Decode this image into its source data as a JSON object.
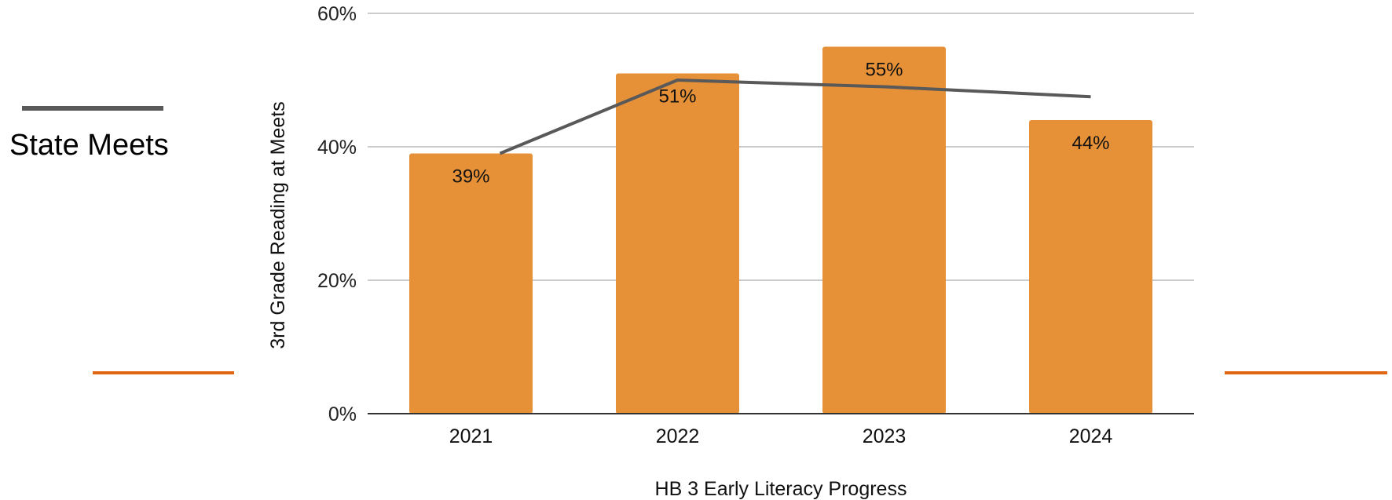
{
  "chart_data": {
    "type": "bar",
    "categories": [
      "2021",
      "2022",
      "2023",
      "2024"
    ],
    "series": [
      {
        "type": "bar",
        "values": [
          39,
          51,
          55,
          44
        ],
        "data_labels": [
          "39%",
          "51%",
          "55%",
          "44%"
        ]
      },
      {
        "name": "State Meets",
        "type": "line",
        "values": [
          39,
          50,
          49,
          47.5
        ]
      }
    ],
    "xlabel": "HB 3 Early Literacy Progress",
    "ylabel": "3rd Grade Reading at Meets",
    "ylim": [
      0,
      60
    ],
    "yticks": [
      {
        "value": 0,
        "label": "0%"
      },
      {
        "value": 20,
        "label": "20%"
      },
      {
        "value": 40,
        "label": "40%"
      },
      {
        "value": 60,
        "label": "60%"
      }
    ],
    "grid": true,
    "legend_position": "left",
    "colors": {
      "bar": "#E69138",
      "line": "#595959",
      "grid": "#CCCCCC",
      "axis": "#333333",
      "accent_line": "#E06614"
    }
  }
}
